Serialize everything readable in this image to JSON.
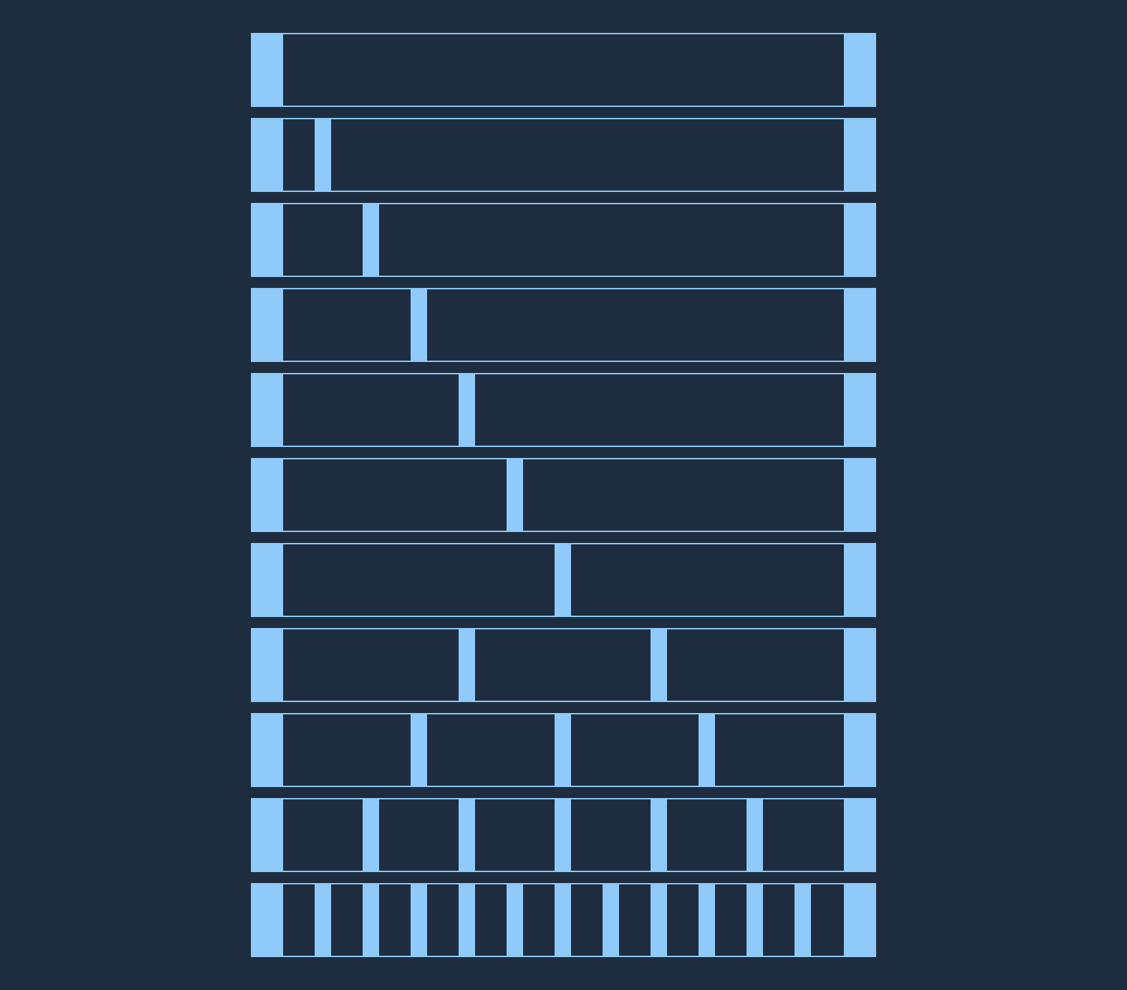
{
  "colors": {
    "background": "#1d2d3f",
    "accent": "#90caf9"
  },
  "rows": [
    {
      "columns": 1
    },
    {
      "columns": 12,
      "spans": [
        1,
        11
      ]
    },
    {
      "columns": 12,
      "spans": [
        2,
        10
      ]
    },
    {
      "columns": 12,
      "spans": [
        3,
        9
      ]
    },
    {
      "columns": 12,
      "spans": [
        4,
        8
      ]
    },
    {
      "columns": 12,
      "spans": [
        5,
        7
      ]
    },
    {
      "columns": 12,
      "spans": [
        6,
        6
      ]
    },
    {
      "columns": 12,
      "spans": [
        4,
        4,
        4
      ]
    },
    {
      "columns": 12,
      "spans": [
        3,
        3,
        3,
        3
      ]
    },
    {
      "columns": 12,
      "spans": [
        2,
        2,
        2,
        2,
        2,
        2
      ]
    },
    {
      "columns": 12,
      "spans": [
        1,
        1,
        1,
        1,
        1,
        1,
        1,
        1,
        1,
        1,
        1,
        1
      ]
    }
  ]
}
